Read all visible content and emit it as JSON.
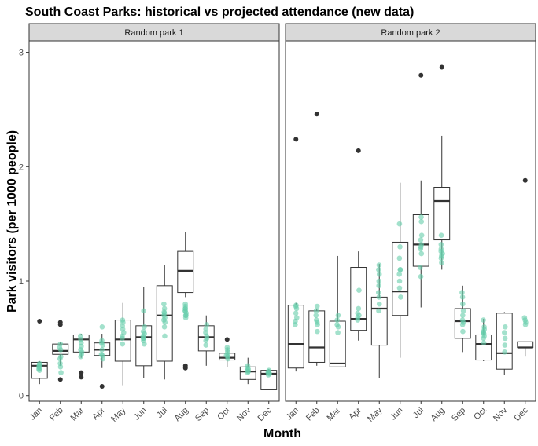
{
  "chart_data": {
    "type": "box",
    "title": "South Coast Parks: historical vs projected attendance (new data)",
    "xlabel": "Month",
    "ylabel": "Park visitors (per 1000 people)",
    "ylim": [
      -0.05,
      3.1
    ],
    "yticks": [
      0,
      1,
      2,
      3
    ],
    "categories": [
      "Jan",
      "Feb",
      "Mar",
      "Apr",
      "May",
      "Jun",
      "Jul",
      "Aug",
      "Sep",
      "Oct",
      "Nov",
      "Dec"
    ],
    "colors": {
      "points": "#66cdaa",
      "box": "#333333",
      "strip": "#d9d9d9",
      "panel_border": "#333333"
    },
    "panels": [
      {
        "name": "Random park 1",
        "boxes": [
          {
            "month": "Jan",
            "q1": 0.15,
            "median": 0.26,
            "q3": 0.29,
            "whisker_low": 0.1,
            "whisker_high": 0.3,
            "outliers": [
              0.65
            ]
          },
          {
            "month": "Feb",
            "q1": 0.36,
            "median": 0.39,
            "q3": 0.45,
            "whisker_low": 0.26,
            "whisker_high": 0.47,
            "outliers": [
              0.62,
              0.64,
              0.14
            ]
          },
          {
            "month": "Mar",
            "q1": 0.38,
            "median": 0.49,
            "q3": 0.53,
            "whisker_low": 0.33,
            "whisker_high": 0.54,
            "outliers": [
              0.2,
              0.16
            ]
          },
          {
            "month": "Apr",
            "q1": 0.35,
            "median": 0.4,
            "q3": 0.46,
            "whisker_low": 0.24,
            "whisker_high": 0.54,
            "outliers": [
              0.08
            ]
          },
          {
            "month": "May",
            "q1": 0.3,
            "median": 0.49,
            "q3": 0.66,
            "whisker_low": 0.09,
            "whisker_high": 0.81,
            "outliers": []
          },
          {
            "month": "Jun",
            "q1": 0.26,
            "median": 0.51,
            "q3": 0.61,
            "whisker_low": 0.15,
            "whisker_high": 0.95,
            "outliers": []
          },
          {
            "month": "Jul",
            "q1": 0.3,
            "median": 0.7,
            "q3": 0.96,
            "whisker_low": 0.14,
            "whisker_high": 1.14,
            "outliers": []
          },
          {
            "month": "Aug",
            "q1": 0.9,
            "median": 1.09,
            "q3": 1.26,
            "whisker_low": 0.86,
            "whisker_high": 1.43,
            "outliers": [
              0.26,
              0.24
            ]
          },
          {
            "month": "Sep",
            "q1": 0.39,
            "median": 0.51,
            "q3": 0.61,
            "whisker_low": 0.26,
            "whisker_high": 0.7,
            "outliers": []
          },
          {
            "month": "Oct",
            "q1": 0.31,
            "median": 0.33,
            "q3": 0.37,
            "whisker_low": 0.25,
            "whisker_high": 0.42,
            "outliers": [
              0.49
            ]
          },
          {
            "month": "Nov",
            "q1": 0.14,
            "median": 0.21,
            "q3": 0.25,
            "whisker_low": 0.1,
            "whisker_high": 0.33,
            "outliers": []
          },
          {
            "month": "Dec",
            "q1": 0.05,
            "median": 0.19,
            "q3": 0.22,
            "whisker_low": 0.05,
            "whisker_high": 0.23,
            "outliers": []
          }
        ],
        "points": [
          {
            "month": "Jan",
            "values": [
              0.22,
              0.24,
              0.25,
              0.26,
              0.27,
              0.28,
              0.23
            ]
          },
          {
            "month": "Feb",
            "values": [
              0.2,
              0.25,
              0.28,
              0.32,
              0.34,
              0.4,
              0.42,
              0.45
            ]
          },
          {
            "month": "Mar",
            "values": [
              0.34,
              0.36,
              0.4,
              0.43,
              0.46,
              0.49,
              0.52,
              0.38
            ]
          },
          {
            "month": "Apr",
            "values": [
              0.32,
              0.36,
              0.4,
              0.44,
              0.46,
              0.48,
              0.6,
              0.35
            ]
          },
          {
            "month": "May",
            "values": [
              0.45,
              0.5,
              0.55,
              0.58,
              0.61,
              0.64,
              0.66,
              0.52
            ]
          },
          {
            "month": "Jun",
            "values": [
              0.45,
              0.48,
              0.5,
              0.52,
              0.54,
              0.56,
              0.6,
              0.74,
              0.5
            ]
          },
          {
            "month": "Jul",
            "values": [
              0.52,
              0.6,
              0.64,
              0.68,
              0.7,
              0.73,
              0.76,
              0.8,
              0.66,
              0.72
            ]
          },
          {
            "month": "Aug",
            "values": [
              0.68,
              0.7,
              0.72,
              0.74,
              0.76,
              0.78,
              0.8,
              0.7,
              0.74,
              0.76
            ]
          },
          {
            "month": "Sep",
            "values": [
              0.44,
              0.48,
              0.52,
              0.55,
              0.58,
              0.62,
              0.5
            ]
          },
          {
            "month": "Oct",
            "values": [
              0.32,
              0.34,
              0.36,
              0.38,
              0.4,
              0.42,
              0.35
            ]
          },
          {
            "month": "Nov",
            "values": [
              0.2,
              0.22,
              0.24,
              0.26,
              0.21,
              0.23
            ]
          },
          {
            "month": "Dec",
            "values": [
              0.18,
              0.19,
              0.2,
              0.21,
              0.22,
              0.2
            ]
          }
        ]
      },
      {
        "name": "Random park 2",
        "boxes": [
          {
            "month": "Jan",
            "q1": 0.24,
            "median": 0.45,
            "q3": 0.79,
            "whisker_low": 0.21,
            "whisker_high": 0.81,
            "outliers": [
              2.24
            ]
          },
          {
            "month": "Feb",
            "q1": 0.29,
            "median": 0.42,
            "q3": 0.74,
            "whisker_low": 0.26,
            "whisker_high": 0.76,
            "outliers": [
              2.46
            ]
          },
          {
            "month": "Mar",
            "q1": 0.25,
            "median": 0.28,
            "q3": 0.65,
            "whisker_low": 0.25,
            "whisker_high": 1.22,
            "outliers": []
          },
          {
            "month": "Apr",
            "q1": 0.57,
            "median": 0.67,
            "q3": 1.12,
            "whisker_low": 0.48,
            "whisker_high": 1.26,
            "outliers": [
              2.14
            ]
          },
          {
            "month": "May",
            "q1": 0.44,
            "median": 0.76,
            "q3": 0.86,
            "whisker_low": 0.15,
            "whisker_high": 1.15,
            "outliers": []
          },
          {
            "month": "Jun",
            "q1": 0.7,
            "median": 0.91,
            "q3": 1.34,
            "whisker_low": 0.33,
            "whisker_high": 1.86,
            "outliers": []
          },
          {
            "month": "Jul",
            "q1": 1.13,
            "median": 1.32,
            "q3": 1.58,
            "whisker_low": 0.77,
            "whisker_high": 1.88,
            "outliers": [
              2.8
            ]
          },
          {
            "month": "Aug",
            "q1": 1.36,
            "median": 1.7,
            "q3": 1.82,
            "whisker_low": 1.1,
            "whisker_high": 2.27,
            "outliers": [
              2.87
            ]
          },
          {
            "month": "Sep",
            "q1": 0.5,
            "median": 0.65,
            "q3": 0.76,
            "whisker_low": 0.38,
            "whisker_high": 0.96,
            "outliers": []
          },
          {
            "month": "Oct",
            "q1": 0.31,
            "median": 0.45,
            "q3": 0.53,
            "whisker_low": 0.3,
            "whisker_high": 0.67,
            "outliers": []
          },
          {
            "month": "Nov",
            "q1": 0.23,
            "median": 0.37,
            "q3": 0.72,
            "whisker_low": 0.18,
            "whisker_high": 0.73,
            "outliers": []
          },
          {
            "month": "Dec",
            "q1": 0.42,
            "median": 0.42,
            "q3": 0.47,
            "whisker_low": 0.34,
            "whisker_high": 0.47,
            "outliers": [
              1.88
            ]
          }
        ],
        "points": [
          {
            "month": "Jan",
            "values": [
              0.62,
              0.68,
              0.72,
              0.76,
              0.79,
              0.78,
              0.65
            ]
          },
          {
            "month": "Feb",
            "values": [
              0.56,
              0.62,
              0.66,
              0.7,
              0.74,
              0.78,
              0.64
            ]
          },
          {
            "month": "Mar",
            "values": [
              0.55,
              0.6,
              0.66,
              0.7,
              0.62
            ]
          },
          {
            "month": "Apr",
            "values": [
              0.66,
              0.68,
              0.72,
              0.76,
              0.92,
              0.7
            ]
          },
          {
            "month": "May",
            "values": [
              0.74,
              0.8,
              0.9,
              1.0,
              1.06,
              1.1,
              1.14,
              0.96,
              0.86
            ]
          },
          {
            "month": "Jun",
            "values": [
              0.86,
              0.94,
              1.0,
              1.06,
              1.1,
              1.2,
              1.3,
              1.5,
              1.1
            ]
          },
          {
            "month": "Jul",
            "values": [
              1.04,
              1.12,
              1.24,
              1.3,
              1.32,
              1.36,
              1.4,
              1.52,
              1.56,
              1.28
            ]
          },
          {
            "month": "Aug",
            "values": [
              1.16,
              1.2,
              1.24,
              1.28,
              1.32,
              1.4,
              1.22,
              1.26
            ]
          },
          {
            "month": "Sep",
            "values": [
              0.56,
              0.62,
              0.66,
              0.7,
              0.74,
              0.8,
              0.86,
              0.9,
              0.64
            ]
          },
          {
            "month": "Oct",
            "values": [
              0.46,
              0.5,
              0.52,
              0.54,
              0.56,
              0.58,
              0.6,
              0.66,
              0.55
            ]
          },
          {
            "month": "Nov",
            "values": [
              0.38,
              0.44,
              0.5,
              0.55,
              0.6
            ]
          },
          {
            "month": "Dec",
            "values": [
              0.62,
              0.64,
              0.66,
              0.68
            ]
          }
        ]
      }
    ]
  }
}
